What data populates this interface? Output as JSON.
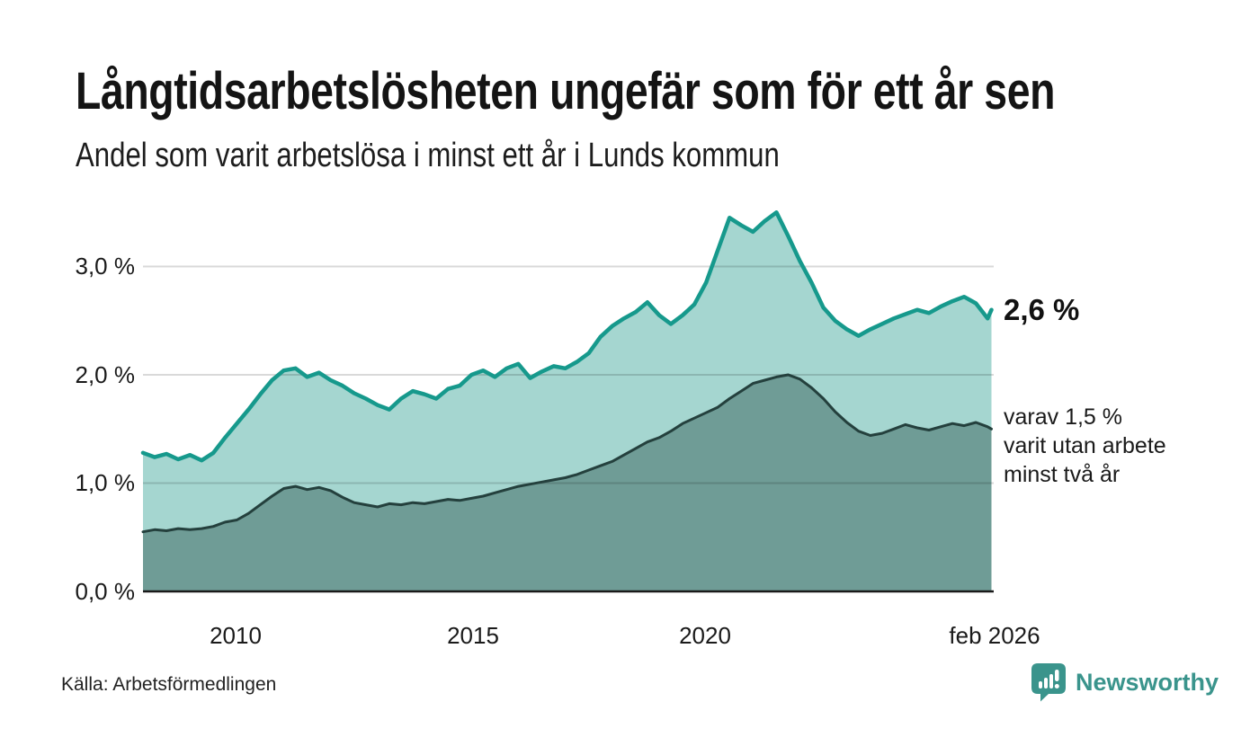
{
  "title": "Långtidsarbetslösheten ungefär som för ett år sen",
  "subtitle": "Andel som varit arbetslösa i minst ett år i Lunds kommun",
  "annotations": {
    "end_value_label": "2,6 %",
    "secondary_lines": [
      "varav 1,5 %",
      "varit utan arbete",
      "minst två år"
    ]
  },
  "footer": {
    "source": "Källa: Arbetsförmedlingen",
    "brand": "Newsworthy",
    "brand_icon": "newsworthy-speech-bubble-bar-chart-icon"
  },
  "colors": {
    "line_primary": "#16998c",
    "fill_primary": "#a5d6d0",
    "line_secondary": "#24403d",
    "fill_secondary": "#6f9c96",
    "grid": "#d8d8d8",
    "axis": "#1a1a1a",
    "brand_teal": "#3a948c",
    "text": "#1a1a1a"
  },
  "chart_data": {
    "type": "area",
    "title": "Långtidsarbetslösheten ungefär som för ett år sen",
    "subtitle": "Andel som varit arbetslösa i minst ett år i Lunds kommun",
    "xlabel": "",
    "ylabel": "",
    "grid": true,
    "legend_position": "right-annotations",
    "xlim": [
      2008.0,
      2026.13
    ],
    "ylim": [
      0,
      3.7
    ],
    "yticks": [
      {
        "value": 0.0,
        "label": "0,0 %"
      },
      {
        "value": 1.0,
        "label": "1,0 %"
      },
      {
        "value": 2.0,
        "label": "2,0 %"
      },
      {
        "value": 3.0,
        "label": "3,0 %"
      }
    ],
    "xticks": [
      {
        "x": 2010.0,
        "label": "2010"
      },
      {
        "x": 2015.0,
        "label": "2015"
      },
      {
        "x": 2020.0,
        "label": "2020"
      },
      {
        "x": 2026.08,
        "label": "feb 2026"
      }
    ],
    "x": [
      2008.0,
      2008.25,
      2008.5,
      2008.75,
      2009.0,
      2009.25,
      2009.5,
      2009.75,
      2010.0,
      2010.25,
      2010.5,
      2010.75,
      2011.0,
      2011.25,
      2011.5,
      2011.75,
      2012.0,
      2012.25,
      2012.5,
      2012.75,
      2013.0,
      2013.25,
      2013.5,
      2013.75,
      2014.0,
      2014.25,
      2014.5,
      2014.75,
      2015.0,
      2015.25,
      2015.5,
      2015.75,
      2016.0,
      2016.25,
      2016.5,
      2016.75,
      2017.0,
      2017.25,
      2017.5,
      2017.75,
      2018.0,
      2018.25,
      2018.5,
      2018.75,
      2019.0,
      2019.25,
      2019.5,
      2019.75,
      2020.0,
      2020.25,
      2020.5,
      2020.75,
      2021.0,
      2021.25,
      2021.5,
      2021.75,
      2022.0,
      2022.25,
      2022.5,
      2022.75,
      2023.0,
      2023.25,
      2023.5,
      2023.75,
      2024.0,
      2024.25,
      2024.5,
      2024.75,
      2025.0,
      2025.25,
      2025.5,
      2025.75,
      2026.0,
      2026.083
    ],
    "series": [
      {
        "name": "Andel som varit arbetslösa i minst ett år",
        "end_value": 2.6,
        "line_color": "#16998c",
        "fill_color": "#a5d6d0",
        "values": [
          1.28,
          1.24,
          1.27,
          1.22,
          1.26,
          1.21,
          1.28,
          1.42,
          1.55,
          1.68,
          1.82,
          1.95,
          2.04,
          2.06,
          1.98,
          2.02,
          1.95,
          1.9,
          1.83,
          1.78,
          1.72,
          1.68,
          1.78,
          1.85,
          1.82,
          1.78,
          1.87,
          1.9,
          2.0,
          2.04,
          1.98,
          2.06,
          2.1,
          1.97,
          2.03,
          2.08,
          2.06,
          2.12,
          2.2,
          2.35,
          2.45,
          2.52,
          2.58,
          2.67,
          2.55,
          2.47,
          2.55,
          2.65,
          2.85,
          3.15,
          3.45,
          3.38,
          3.32,
          3.42,
          3.5,
          3.28,
          3.05,
          2.85,
          2.62,
          2.5,
          2.42,
          2.36,
          2.42,
          2.47,
          2.52,
          2.56,
          2.6,
          2.57,
          2.63,
          2.68,
          2.72,
          2.66,
          2.52,
          2.6
        ]
      },
      {
        "name": "varav utan arbete minst två år",
        "end_value": 1.5,
        "line_color": "#24403d",
        "fill_color": "#6f9c96",
        "values": [
          0.55,
          0.57,
          0.56,
          0.58,
          0.57,
          0.58,
          0.6,
          0.64,
          0.66,
          0.72,
          0.8,
          0.88,
          0.95,
          0.97,
          0.94,
          0.96,
          0.93,
          0.87,
          0.82,
          0.8,
          0.78,
          0.81,
          0.8,
          0.82,
          0.81,
          0.83,
          0.85,
          0.84,
          0.86,
          0.88,
          0.91,
          0.94,
          0.97,
          0.99,
          1.01,
          1.03,
          1.05,
          1.08,
          1.12,
          1.16,
          1.2,
          1.26,
          1.32,
          1.38,
          1.42,
          1.48,
          1.55,
          1.6,
          1.65,
          1.7,
          1.78,
          1.85,
          1.92,
          1.95,
          1.98,
          2.0,
          1.96,
          1.88,
          1.78,
          1.66,
          1.56,
          1.48,
          1.44,
          1.46,
          1.5,
          1.54,
          1.51,
          1.49,
          1.52,
          1.55,
          1.53,
          1.56,
          1.52,
          1.5
        ]
      }
    ]
  }
}
